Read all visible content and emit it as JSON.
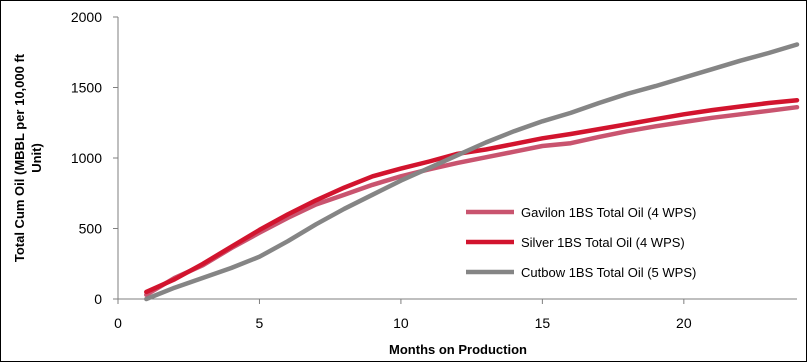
{
  "chart_data": {
    "type": "line",
    "title": "",
    "xlabel": "Months on Production",
    "ylabel_line1": "Total Cum Oil (MBBL per 10,000 ft",
    "ylabel_line2": "Unit)",
    "xlim": [
      0,
      24
    ],
    "ylim": [
      0,
      2000
    ],
    "xticks": [
      0,
      5,
      10,
      15,
      20
    ],
    "yticks": [
      0,
      500,
      1000,
      1500,
      2000
    ],
    "grid": false,
    "legend_position": "center-right",
    "series": [
      {
        "name": "Gavilon 1BS Total Oil (4 WPS)",
        "color": "#c9546f",
        "x": [
          1,
          2,
          3,
          4,
          5,
          6,
          7,
          8,
          9,
          10,
          11,
          12,
          13,
          14,
          15,
          16,
          17,
          18,
          19,
          20,
          21,
          22,
          23,
          24
        ],
        "y": [
          30,
          150,
          240,
          360,
          470,
          575,
          670,
          740,
          810,
          870,
          920,
          965,
          1005,
          1045,
          1085,
          1105,
          1150,
          1190,
          1225,
          1255,
          1285,
          1310,
          1335,
          1360
        ]
      },
      {
        "name": "Silver 1BS Total Oil (4 WPS)",
        "color": "#d2142e",
        "x": [
          1,
          2,
          3,
          4,
          5,
          6,
          7,
          8,
          9,
          10,
          11,
          12,
          13,
          14,
          15,
          16,
          17,
          18,
          19,
          20,
          21,
          22,
          23,
          24
        ],
        "y": [
          50,
          140,
          250,
          370,
          490,
          600,
          700,
          790,
          870,
          925,
          975,
          1030,
          1060,
          1100,
          1140,
          1170,
          1205,
          1240,
          1275,
          1310,
          1340,
          1365,
          1390,
          1410
        ]
      },
      {
        "name": "Cutbow 1BS Total Oil (5 WPS)",
        "color": "#858585",
        "x": [
          1,
          2,
          3,
          4,
          5,
          6,
          7,
          8,
          9,
          10,
          11,
          12,
          13,
          14,
          15,
          16,
          17,
          18,
          19,
          20,
          21,
          22,
          23,
          24
        ],
        "y": [
          0,
          80,
          150,
          220,
          300,
          410,
          530,
          640,
          740,
          840,
          930,
          1020,
          1110,
          1190,
          1260,
          1320,
          1390,
          1455,
          1510,
          1570,
          1630,
          1690,
          1745,
          1805
        ]
      }
    ]
  }
}
